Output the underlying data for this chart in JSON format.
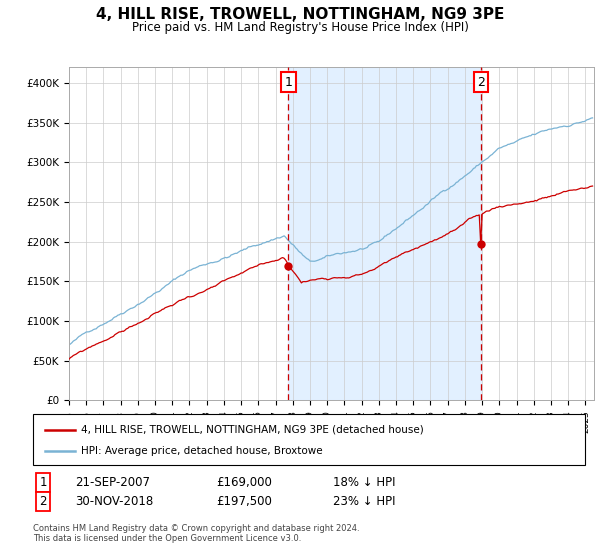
{
  "title": "4, HILL RISE, TROWELL, NOTTINGHAM, NG9 3PE",
  "subtitle": "Price paid vs. HM Land Registry's House Price Index (HPI)",
  "sale1_date": "21-SEP-2007",
  "sale1_price": 169000,
  "sale1_label": "1",
  "sale1_pct": "18% ↓ HPI",
  "sale2_date": "30-NOV-2018",
  "sale2_price": 197500,
  "sale2_label": "2",
  "sale2_pct": "23% ↓ HPI",
  "legend_line1": "4, HILL RISE, TROWELL, NOTTINGHAM, NG9 3PE (detached house)",
  "legend_line2": "HPI: Average price, detached house, Broxtowe",
  "footer": "Contains HM Land Registry data © Crown copyright and database right 2024.\nThis data is licensed under the Open Government Licence v3.0.",
  "hpi_color": "#7ab3d4",
  "price_color": "#cc0000",
  "bg_color": "#ddeeff",
  "ylim": [
    0,
    420000
  ],
  "sale1_year": 2007.72,
  "sale2_year": 2018.92,
  "start_year": 1995.0,
  "end_year": 2025.5
}
